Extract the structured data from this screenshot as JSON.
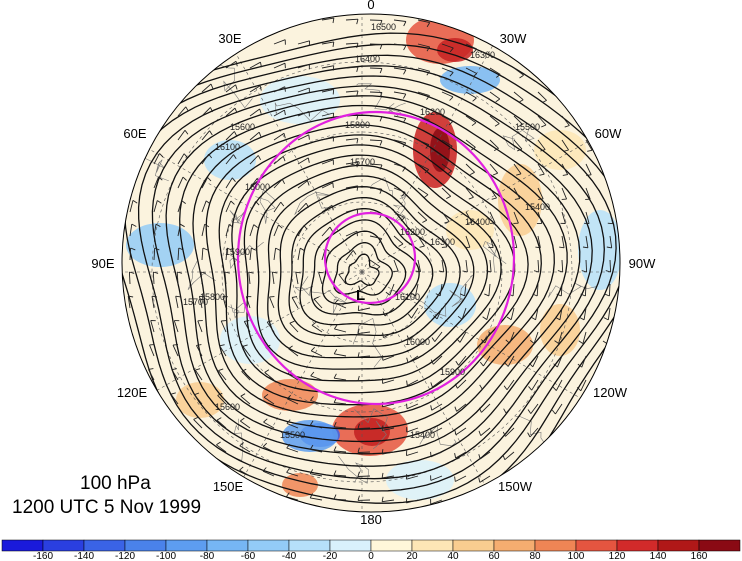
{
  "figure": {
    "level_text": "100 hPa",
    "time_text": "1200 UTC 5 Nov 1999",
    "low_marker": "L"
  },
  "map": {
    "projection": "north-polar-stereographic",
    "longitude_labels": [
      {
        "lon": 0,
        "text": "0"
      },
      {
        "lon": -30,
        "text": "30W"
      },
      {
        "lon": -60,
        "text": "60W"
      },
      {
        "lon": -90,
        "text": "90W"
      },
      {
        "lon": -120,
        "text": "120W"
      },
      {
        "lon": -150,
        "text": "150W"
      },
      {
        "lon": 180,
        "text": "180"
      },
      {
        "lon": 150,
        "text": "150E"
      },
      {
        "lon": 120,
        "text": "120E"
      },
      {
        "lon": 90,
        "text": "90E"
      },
      {
        "lon": 60,
        "text": "60E"
      },
      {
        "lon": 30,
        "text": "30E"
      }
    ],
    "contour_labels": [
      "16500",
      "16400",
      "16300",
      "16200",
      "16100",
      "16000",
      "15900",
      "15800",
      "15700",
      "15600",
      "15500",
      "15400"
    ],
    "colors": {
      "contour": "#111111",
      "latitude_circle": "#e020e0",
      "barb": "#222222"
    }
  },
  "colorbar": {
    "tick_labels": [
      "-160",
      "-140",
      "-120",
      "-100",
      "-80",
      "-60",
      "-40",
      "-20",
      "0",
      "20",
      "40",
      "60",
      "80",
      "100",
      "120",
      "140",
      "160"
    ],
    "bins": [
      {
        "color": "#1a1adb"
      },
      {
        "color": "#2a3fe0"
      },
      {
        "color": "#3a63e6"
      },
      {
        "color": "#4a82ea"
      },
      {
        "color": "#5d9df0"
      },
      {
        "color": "#76b6f4"
      },
      {
        "color": "#93cbf7"
      },
      {
        "color": "#b6e0fa"
      },
      {
        "color": "#d9f1fc"
      },
      {
        "color": "#fff7da"
      },
      {
        "color": "#fde6b6"
      },
      {
        "color": "#f9cd90"
      },
      {
        "color": "#f5ad70"
      },
      {
        "color": "#ef8555"
      },
      {
        "color": "#e55540"
      },
      {
        "color": "#d22a2a"
      },
      {
        "color": "#b01818"
      },
      {
        "color": "#8a0a14"
      }
    ]
  }
}
